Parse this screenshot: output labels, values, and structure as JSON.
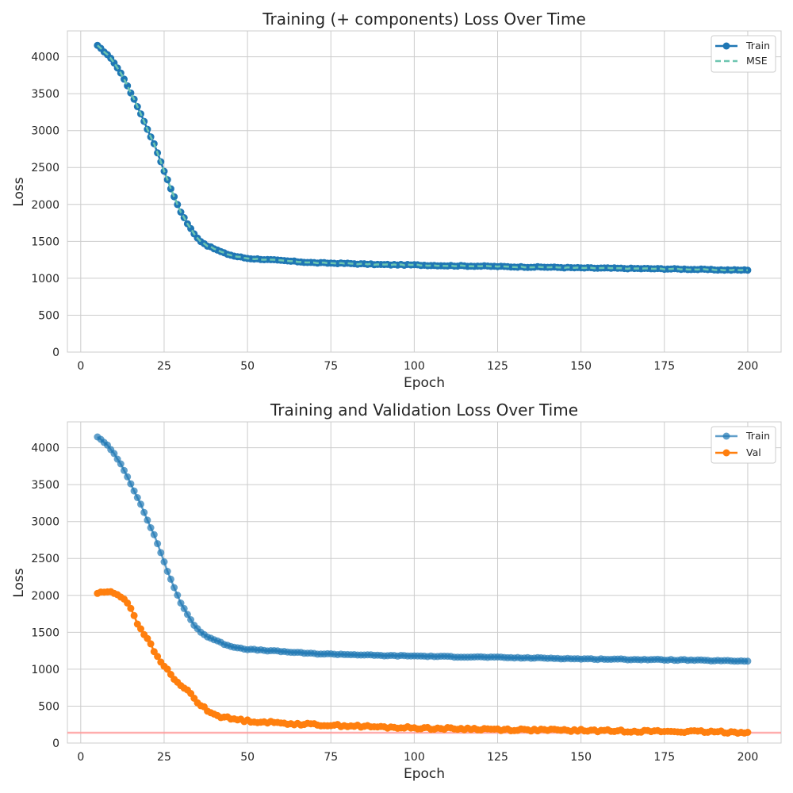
{
  "colors": {
    "train": "#1f77b4",
    "mse": "#6cc5b0",
    "val": "#ff7f0e",
    "hline": "#ff9999",
    "grid": "#cccccc"
  },
  "chart_data": [
    {
      "type": "line",
      "title": "Training (+ components) Loss Over Time",
      "xlabel": "Epoch",
      "ylabel": "Loss",
      "xlim": [
        -4,
        210
      ],
      "ylim": [
        0,
        4350
      ],
      "xticks": [
        0,
        25,
        50,
        75,
        100,
        125,
        150,
        175,
        200
      ],
      "yticks": [
        0,
        500,
        1000,
        1500,
        2000,
        2500,
        3000,
        3500,
        4000
      ],
      "grid": true,
      "legend_position": "top-right",
      "series": [
        {
          "name": "Train",
          "style": "line-markers",
          "keypoints": [
            [
              5,
              4150
            ],
            [
              8,
              4030
            ],
            [
              10,
              3920
            ],
            [
              12,
              3780
            ],
            [
              14,
              3610
            ],
            [
              16,
              3420
            ],
            [
              18,
              3230
            ],
            [
              20,
              3020
            ],
            [
              22,
              2820
            ],
            [
              24,
              2580
            ],
            [
              26,
              2330
            ],
            [
              28,
              2100
            ],
            [
              30,
              1900
            ],
            [
              32,
              1740
            ],
            [
              34,
              1600
            ],
            [
              36,
              1500
            ],
            [
              38,
              1440
            ],
            [
              40,
              1400
            ],
            [
              43,
              1340
            ],
            [
              46,
              1300
            ],
            [
              50,
              1270
            ],
            [
              55,
              1255
            ],
            [
              60,
              1240
            ],
            [
              65,
              1225
            ],
            [
              70,
              1210
            ],
            [
              80,
              1200
            ],
            [
              90,
              1185
            ],
            [
              100,
              1180
            ],
            [
              110,
              1170
            ],
            [
              120,
              1165
            ],
            [
              130,
              1155
            ],
            [
              140,
              1150
            ],
            [
              150,
              1140
            ],
            [
              160,
              1135
            ],
            [
              170,
              1130
            ],
            [
              180,
              1125
            ],
            [
              190,
              1115
            ],
            [
              200,
              1110
            ]
          ]
        },
        {
          "name": "MSE",
          "style": "dashed",
          "same_as": "Train"
        }
      ]
    },
    {
      "type": "line",
      "title": "Training and Validation Loss Over Time",
      "xlabel": "Epoch",
      "ylabel": "Loss",
      "xlim": [
        -4,
        210
      ],
      "ylim": [
        0,
        4350
      ],
      "xticks": [
        0,
        25,
        50,
        75,
        100,
        125,
        150,
        175,
        200
      ],
      "yticks": [
        0,
        500,
        1000,
        1500,
        2000,
        2500,
        3000,
        3500,
        4000
      ],
      "grid": true,
      "legend_position": "top-right",
      "hline": 140,
      "series": [
        {
          "name": "Train",
          "style": "line-markers-faded",
          "keypoints": [
            [
              5,
              4150
            ],
            [
              8,
              4030
            ],
            [
              10,
              3920
            ],
            [
              12,
              3780
            ],
            [
              14,
              3610
            ],
            [
              16,
              3420
            ],
            [
              18,
              3230
            ],
            [
              20,
              3020
            ],
            [
              22,
              2820
            ],
            [
              24,
              2580
            ],
            [
              26,
              2330
            ],
            [
              28,
              2100
            ],
            [
              30,
              1900
            ],
            [
              32,
              1740
            ],
            [
              34,
              1600
            ],
            [
              36,
              1500
            ],
            [
              38,
              1440
            ],
            [
              40,
              1400
            ],
            [
              43,
              1340
            ],
            [
              46,
              1300
            ],
            [
              50,
              1270
            ],
            [
              55,
              1255
            ],
            [
              60,
              1240
            ],
            [
              65,
              1225
            ],
            [
              70,
              1210
            ],
            [
              80,
              1200
            ],
            [
              90,
              1185
            ],
            [
              100,
              1180
            ],
            [
              110,
              1170
            ],
            [
              120,
              1165
            ],
            [
              130,
              1155
            ],
            [
              140,
              1150
            ],
            [
              150,
              1140
            ],
            [
              160,
              1135
            ],
            [
              170,
              1130
            ],
            [
              180,
              1125
            ],
            [
              190,
              1115
            ],
            [
              200,
              1110
            ]
          ]
        },
        {
          "name": "Val",
          "style": "line-markers",
          "keypoints": [
            [
              5,
              2030
            ],
            [
              7,
              2050
            ],
            [
              9,
              2040
            ],
            [
              11,
              2010
            ],
            [
              13,
              1960
            ],
            [
              15,
              1830
            ],
            [
              17,
              1620
            ],
            [
              19,
              1480
            ],
            [
              21,
              1330
            ],
            [
              23,
              1160
            ],
            [
              25,
              1040
            ],
            [
              27,
              940
            ],
            [
              29,
              810
            ],
            [
              31,
              740
            ],
            [
              33,
              680
            ],
            [
              35,
              540
            ],
            [
              37,
              480
            ],
            [
              39,
              410
            ],
            [
              42,
              360
            ],
            [
              45,
              330
            ],
            [
              50,
              300
            ],
            [
              55,
              285
            ],
            [
              60,
              270
            ],
            [
              65,
              260
            ],
            [
              70,
              250
            ],
            [
              75,
              240
            ],
            [
              80,
              235
            ],
            [
              85,
              225
            ],
            [
              90,
              215
            ],
            [
              100,
              205
            ],
            [
              110,
              195
            ],
            [
              120,
              190
            ],
            [
              130,
              180
            ],
            [
              140,
              175
            ],
            [
              150,
              170
            ],
            [
              160,
              165
            ],
            [
              170,
              160
            ],
            [
              180,
              155
            ],
            [
              190,
              150
            ],
            [
              200,
              145
            ]
          ]
        }
      ]
    }
  ]
}
